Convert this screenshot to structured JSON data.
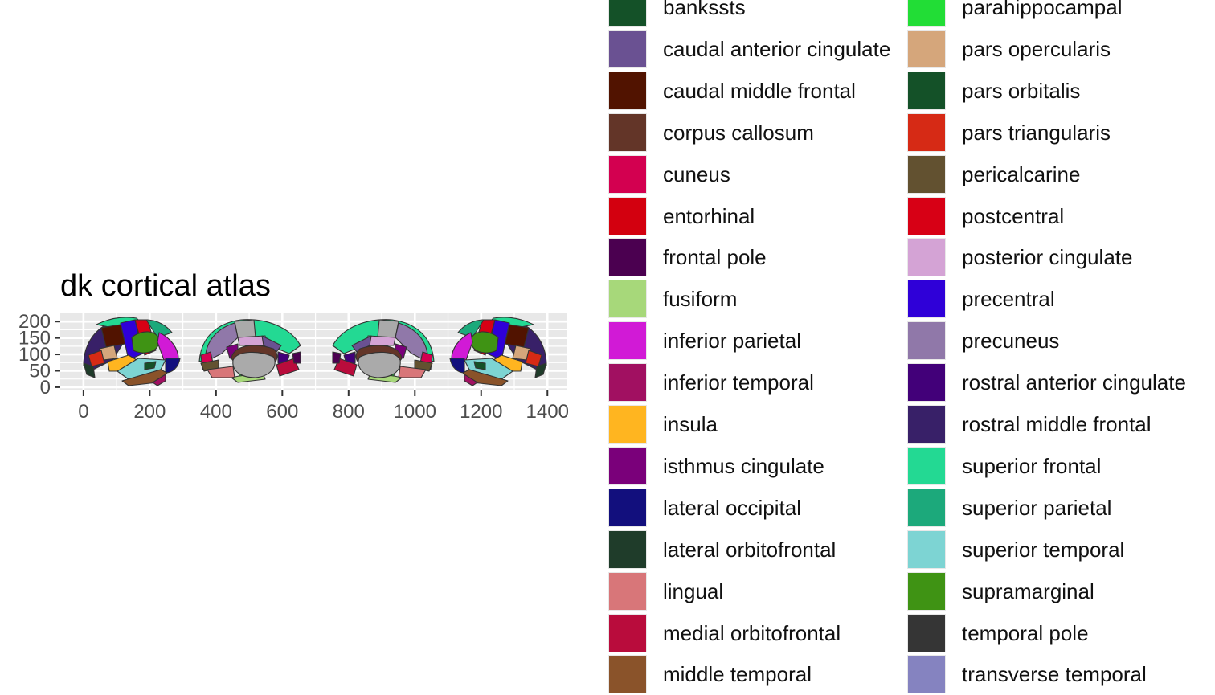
{
  "chart_data": {
    "type": "other",
    "title": "dk cortical atlas",
    "xlabel": "",
    "ylabel": "",
    "xlim": [
      -70,
      1460
    ],
    "ylim": [
      -10,
      225
    ],
    "x_ticks": [
      0,
      200,
      400,
      600,
      800,
      1000,
      1200,
      1400
    ],
    "y_ticks": [
      0,
      50,
      100,
      150,
      200
    ],
    "grid": true,
    "legend_position": "right",
    "legend": [
      {
        "label": "bankssts",
        "color": "#145128"
      },
      {
        "label": "caudal anterior cingulate",
        "color": "#6a5192"
      },
      {
        "label": "caudal middle frontal",
        "color": "#511300"
      },
      {
        "label": "corpus callosum",
        "color": "#633528"
      },
      {
        "label": "cuneus",
        "color": "#d30050"
      },
      {
        "label": "entorhinal",
        "color": "#d3000f"
      },
      {
        "label": "frontal pole",
        "color": "#4b0050"
      },
      {
        "label": "fusiform",
        "color": "#a7d87a"
      },
      {
        "label": "inferior parietal",
        "color": "#d11ad6"
      },
      {
        "label": "inferior temporal",
        "color": "#a11061"
      },
      {
        "label": "insula",
        "color": "#ffb520"
      },
      {
        "label": "isthmus cingulate",
        "color": "#7a007a"
      },
      {
        "label": "lateral occipital",
        "color": "#120f7d"
      },
      {
        "label": "lateral orbitofrontal",
        "color": "#1f3c2a"
      },
      {
        "label": "lingual",
        "color": "#d87679"
      },
      {
        "label": "medial orbitofrontal",
        "color": "#b90c3c"
      },
      {
        "label": "middle temporal",
        "color": "#8a532a"
      },
      {
        "label": "parahippocampal",
        "color": "#22dd36"
      },
      {
        "label": "pars opercularis",
        "color": "#d5a67b"
      },
      {
        "label": "pars orbitalis",
        "color": "#145128"
      },
      {
        "label": "pars triangularis",
        "color": "#d62a15"
      },
      {
        "label": "pericalcarine",
        "color": "#625130"
      },
      {
        "label": "postcentral",
        "color": "#d70015"
      },
      {
        "label": "posterior cingulate",
        "color": "#d4a3d5"
      },
      {
        "label": "precentral",
        "color": "#2f00d8"
      },
      {
        "label": "precuneus",
        "color": "#9078a9"
      },
      {
        "label": "rostral anterior cingulate",
        "color": "#420079"
      },
      {
        "label": "rostral middle frontal",
        "color": "#382068"
      },
      {
        "label": "superior frontal",
        "color": "#23d993"
      },
      {
        "label": "superior parietal",
        "color": "#1ca97b"
      },
      {
        "label": "superior temporal",
        "color": "#7dd4d3"
      },
      {
        "label": "supramarginal",
        "color": "#3f9314"
      },
      {
        "label": "temporal pole",
        "color": "#353535"
      },
      {
        "label": "transverse temporal",
        "color": "#8583c0"
      }
    ],
    "colors": {
      "panel": "#e8e8e8",
      "grid": "#ffffff",
      "outline": "#333333",
      "medial_wall": "#aaaaaa"
    }
  }
}
